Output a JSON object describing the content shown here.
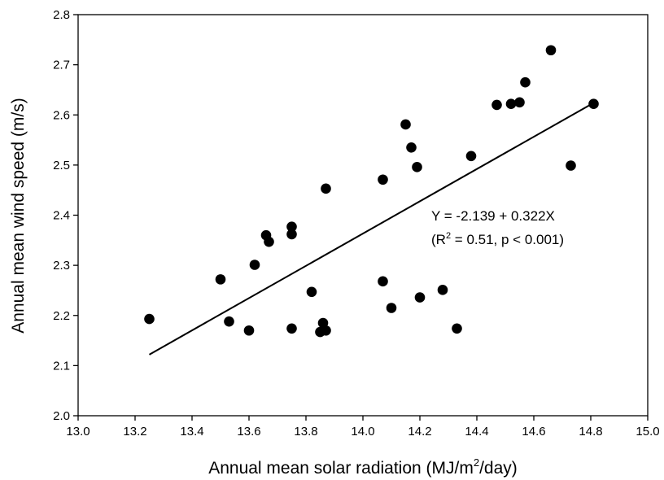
{
  "chart_data": {
    "type": "scatter",
    "xlabel_parts": [
      "Annual mean solar radiation (MJ/m",
      "2",
      "/day)"
    ],
    "ylabel": "Annual mean wind speed (m/s)",
    "xlim": [
      13.0,
      15.0
    ],
    "ylim": [
      2.0,
      2.8
    ],
    "x_ticks": [
      "13.0",
      "13.2",
      "13.4",
      "13.6",
      "13.8",
      "14.0",
      "14.2",
      "14.4",
      "14.6",
      "14.8",
      "15.0"
    ],
    "y_ticks": [
      "2.0",
      "2.1",
      "2.2",
      "2.3",
      "2.4",
      "2.5",
      "2.6",
      "2.7",
      "2.8"
    ],
    "grid": false,
    "points": [
      {
        "x": 13.25,
        "y": 2.193
      },
      {
        "x": 13.5,
        "y": 2.272
      },
      {
        "x": 13.53,
        "y": 2.188
      },
      {
        "x": 13.6,
        "y": 2.17
      },
      {
        "x": 13.62,
        "y": 2.301
      },
      {
        "x": 13.66,
        "y": 2.36
      },
      {
        "x": 13.67,
        "y": 2.347
      },
      {
        "x": 13.75,
        "y": 2.377
      },
      {
        "x": 13.75,
        "y": 2.362
      },
      {
        "x": 13.75,
        "y": 2.174
      },
      {
        "x": 13.82,
        "y": 2.247
      },
      {
        "x": 13.85,
        "y": 2.167
      },
      {
        "x": 13.86,
        "y": 2.185
      },
      {
        "x": 13.87,
        "y": 2.453
      },
      {
        "x": 13.87,
        "y": 2.17
      },
      {
        "x": 14.07,
        "y": 2.268
      },
      {
        "x": 14.07,
        "y": 2.471
      },
      {
        "x": 14.1,
        "y": 2.215
      },
      {
        "x": 14.15,
        "y": 2.581
      },
      {
        "x": 14.17,
        "y": 2.535
      },
      {
        "x": 14.19,
        "y": 2.496
      },
      {
        "x": 14.2,
        "y": 2.236
      },
      {
        "x": 14.28,
        "y": 2.251
      },
      {
        "x": 14.33,
        "y": 2.174
      },
      {
        "x": 14.38,
        "y": 2.518
      },
      {
        "x": 14.47,
        "y": 2.62
      },
      {
        "x": 14.52,
        "y": 2.622
      },
      {
        "x": 14.55,
        "y": 2.625
      },
      {
        "x": 14.57,
        "y": 2.665
      },
      {
        "x": 14.66,
        "y": 2.729
      },
      {
        "x": 14.73,
        "y": 2.499
      },
      {
        "x": 14.81,
        "y": 2.622
      }
    ],
    "fit_line": {
      "x": [
        13.25,
        14.81
      ],
      "y": [
        2.122,
        2.624
      ]
    },
    "annotation": {
      "equation": "Y = -2.139 + 0.322X",
      "stats_parts": [
        "(R",
        "2",
        " = 0.51, p < 0.001)"
      ]
    }
  }
}
